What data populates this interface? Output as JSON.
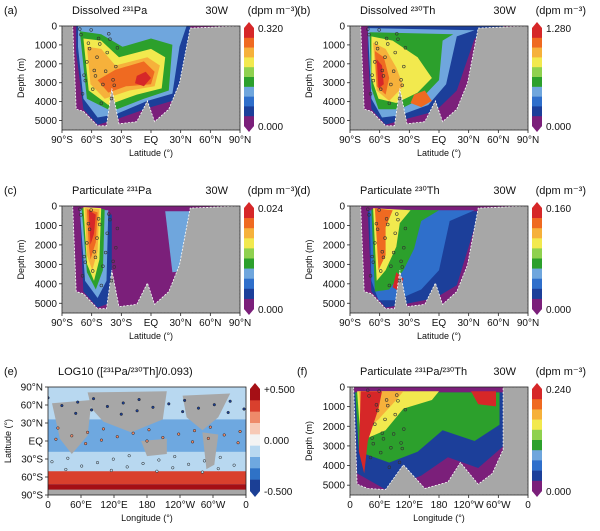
{
  "palette": [
    "#7b1f7a",
    "#1c3f9a",
    "#2f6fcb",
    "#6fa6dd",
    "#2ca02c",
    "#8fd14f",
    "#f2e94e",
    "#f6b13b",
    "#ef6a21",
    "#d62728"
  ],
  "land_color": "#a7a7a7",
  "diverging": [
    "#1b3f95",
    "#2f72c6",
    "#6ea8e0",
    "#b8d8f0",
    "#f3f3f3",
    "#f7c9b6",
    "#ee8a6a",
    "#d9402d",
    "#a50f15"
  ],
  "chart_data": [
    {
      "panel": "(a)",
      "type": "heatmap",
      "title": "Dissolved ²³¹Pa",
      "section": "30W",
      "unit": "(dpm m⁻³)",
      "ylabel": "Depth (m)",
      "xlabel": "Latitude (°)",
      "xticks": [
        "90°S",
        "60°S",
        "30°S",
        "EQ",
        "30°N",
        "60°N",
        "90°N"
      ],
      "yticks": [
        "0",
        "1000",
        "2000",
        "3000",
        "4000",
        "5000"
      ],
      "xlim": [
        -90,
        90
      ],
      "ylim": [
        0,
        5500
      ],
      "colorbar_range": [
        0.0,
        0.32
      ],
      "colorbar_labels": [
        "0.320",
        "0.000"
      ]
    },
    {
      "panel": "(b)",
      "type": "heatmap",
      "title": "Dissolved ²³⁰Th",
      "section": "30W",
      "unit": "(dpm m⁻³)",
      "ylabel": "Depth (m)",
      "xlabel": "Latitude (°)",
      "xticks": [
        "90°S",
        "60°S",
        "30°S",
        "EQ",
        "30°N",
        "60°N",
        "90°N"
      ],
      "yticks": [
        "0",
        "1000",
        "2000",
        "3000",
        "4000",
        "5000"
      ],
      "xlim": [
        -90,
        90
      ],
      "ylim": [
        0,
        5500
      ],
      "colorbar_range": [
        0.0,
        1.28
      ],
      "colorbar_labels": [
        "1.280",
        "0.000"
      ]
    },
    {
      "panel": "(c)",
      "type": "heatmap",
      "title": "Particulate ²³¹Pa",
      "section": "30W",
      "unit": "(dpm m⁻³)",
      "ylabel": "Depth (m)",
      "xlabel": "Latitude (°)",
      "xticks": [
        "90°S",
        "60°S",
        "30°S",
        "EQ",
        "30°N",
        "60°N",
        "90°N"
      ],
      "yticks": [
        "0",
        "1000",
        "2000",
        "3000",
        "4000",
        "5000"
      ],
      "xlim": [
        -90,
        90
      ],
      "ylim": [
        0,
        5500
      ],
      "colorbar_range": [
        0.0,
        0.024
      ],
      "colorbar_labels": [
        "0.024",
        "0.000"
      ]
    },
    {
      "panel": "(d)",
      "type": "heatmap",
      "title": "Particulate ²³⁰Th",
      "section": "30W",
      "unit": "(dpm m⁻³)",
      "ylabel": "Depth (m)",
      "xlabel": "Latitude (°)",
      "xticks": [
        "90°S",
        "60°S",
        "30°S",
        "EQ",
        "30°N",
        "60°N",
        "90°N"
      ],
      "yticks": [
        "0",
        "1000",
        "2000",
        "3000",
        "4000",
        "5000"
      ],
      "xlim": [
        -90,
        90
      ],
      "ylim": [
        0,
        5500
      ],
      "colorbar_range": [
        0.0,
        0.16
      ],
      "colorbar_labels": [
        "0.160",
        "0.000"
      ]
    },
    {
      "panel": "(e)",
      "type": "heatmap",
      "title": "LOG10 ([²³¹Pa/²³⁰Th]/0.093)",
      "ylabel": "Latitude (°)",
      "xlabel": "Longitude (°)",
      "xticks": [
        "0",
        "60°E",
        "120°E",
        "180",
        "120°W",
        "60°W",
        "0"
      ],
      "yticks": [
        "90°N",
        "60°N",
        "30°N",
        "EQ",
        "30°S",
        "60°S",
        "90°S"
      ],
      "colorbar_range": [
        -0.5,
        0.5
      ],
      "colorbar_labels": [
        "+0.500",
        "0.000",
        "-0.500"
      ]
    },
    {
      "panel": "(f)",
      "type": "heatmap",
      "title": "Particulate ²³¹Pa/²³⁰Th",
      "section": "30W",
      "unit": "(dpm m⁻³)",
      "ylabel": "Depth (m)",
      "xlabel": "Longitude (°)",
      "xticks": [
        "0",
        "60°E",
        "120°E",
        "180",
        "120°W",
        "60°W",
        "0"
      ],
      "yticks": [
        "0",
        "1000",
        "2000",
        "3000",
        "4000",
        "5000"
      ],
      "ylim": [
        0,
        5500
      ],
      "colorbar_range": [
        0.0,
        0.24
      ],
      "colorbar_labels": [
        "0.240",
        "0.000"
      ]
    }
  ]
}
